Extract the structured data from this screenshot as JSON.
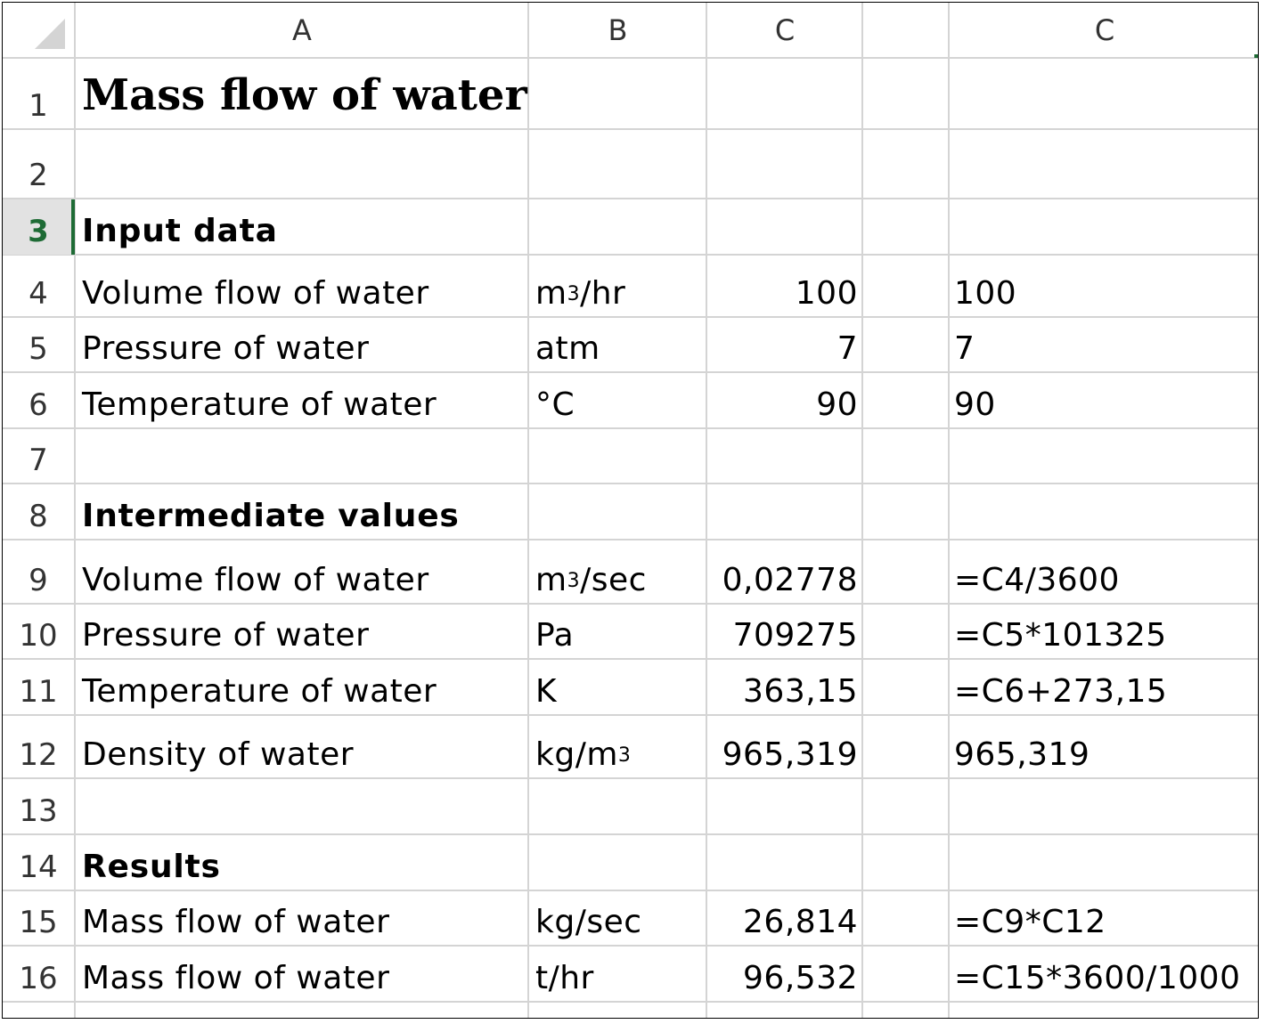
{
  "columns": {
    "a": "A",
    "b": "B",
    "c1": "C",
    "c2": "C"
  },
  "rows": {
    "r1": {
      "num": "1",
      "label": "Mass flow of water"
    },
    "r2": {
      "num": "2"
    },
    "r3": {
      "num": "3",
      "label": "Input data"
    },
    "r4": {
      "num": "4",
      "label": "Volume flow of water",
      "unit_base": "m",
      "unit_sup": "3",
      "unit_tail": "/hr",
      "value": "100",
      "formula": "100"
    },
    "r5": {
      "num": "5",
      "label": "Pressure of water",
      "unit": "atm",
      "value": "7",
      "formula": "7"
    },
    "r6": {
      "num": "6",
      "label": "Temperature of water",
      "unit": "°C",
      "value": "90",
      "formula": "90"
    },
    "r7": {
      "num": "7"
    },
    "r8": {
      "num": "8",
      "label": "Intermediate values"
    },
    "r9": {
      "num": "9",
      "label": "Volume flow of water",
      "unit_base": "m",
      "unit_sup": "3",
      "unit_tail": "/sec",
      "value": "0,02778",
      "formula": "=C4/3600"
    },
    "r10": {
      "num": "10",
      "label": "Pressure of water",
      "unit": "Pa",
      "value": "709275",
      "formula": "=C5*101325"
    },
    "r11": {
      "num": "11",
      "label": "Temperature of water",
      "unit": "K",
      "value": "363,15",
      "formula": "=C6+273,15"
    },
    "r12": {
      "num": "12",
      "label": "Density of water",
      "unit_base": "kg/m",
      "unit_sup": "3",
      "value": "965,319",
      "formula": "965,319"
    },
    "r13": {
      "num": "13"
    },
    "r14": {
      "num": "14",
      "label": "Results"
    },
    "r15": {
      "num": "15",
      "label": "Mass flow of water",
      "unit": "kg/sec",
      "value": "26,814",
      "formula": "=C9*C12"
    },
    "r16": {
      "num": "16",
      "label": "Mass flow of water",
      "unit": "t/hr",
      "value": "96,532",
      "formula": "=C15*3600/1000"
    }
  },
  "active_row": "3",
  "colors": {
    "grid": "#d4d4d4",
    "header_bg": "#ffffff",
    "active_accent": "#1e6b35"
  }
}
